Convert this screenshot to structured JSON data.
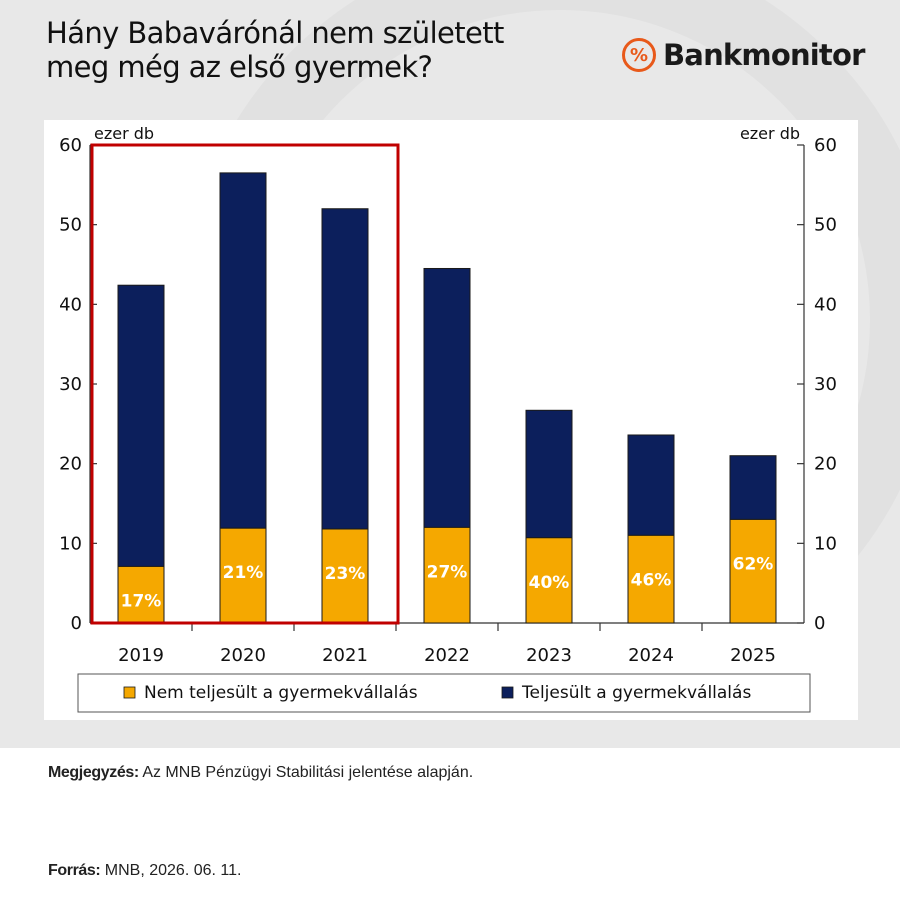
{
  "header": {
    "title_line1": "Hány Babavárónál nem született",
    "title_line2": "meg még az első gyermek?",
    "logo_symbol": "%",
    "logo_text": "Bankmonitor"
  },
  "chart_data": {
    "type": "bar",
    "stacked": true,
    "categories": [
      "2019",
      "2020",
      "2021",
      "2022",
      "2023",
      "2024",
      "2025"
    ],
    "series": [
      {
        "name": "Nem teljesült a gyermekvállalás",
        "color": "#f5a800",
        "values": [
          7.1,
          11.9,
          11.8,
          12.0,
          10.7,
          11.0,
          13.0
        ]
      },
      {
        "name": "Teljesült a gyermekvállalás",
        "color": "#0c1f5c",
        "values": [
          35.3,
          44.6,
          40.2,
          32.5,
          16.0,
          12.6,
          8.0
        ]
      }
    ],
    "totals": [
      42.4,
      56.5,
      52.0,
      44.5,
      26.7,
      23.6,
      21.0
    ],
    "bar_labels": [
      "17%",
      "21%",
      "23%",
      "27%",
      "40%",
      "46%",
      "62%"
    ],
    "ylim": [
      0,
      60
    ],
    "yticks": [
      0,
      10,
      20,
      30,
      40,
      50,
      60
    ],
    "ylabel_left": "ezer db",
    "ylabel_right": "ezer db",
    "highlight": {
      "categories": [
        "2019",
        "2020",
        "2021"
      ],
      "color": "#c00000"
    },
    "legend_position": "bottom",
    "grid": false
  },
  "footer": {
    "note_label": "Megjegyzés:",
    "note_text": " Az MNB Pénzügyi Stabilitási jelentése alapján.",
    "source_label": "Forrás:",
    "source_text": " MNB, 2026. 06. 11."
  }
}
